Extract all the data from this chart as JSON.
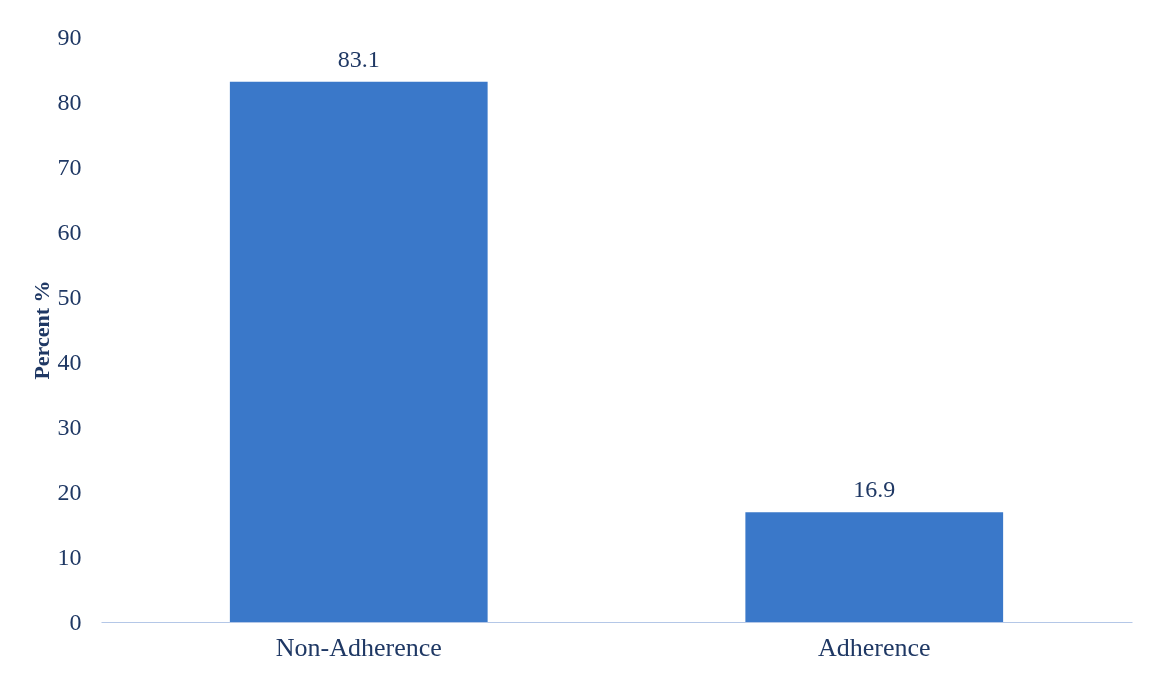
{
  "chart_data": {
    "type": "bar",
    "ylabel": "Percent %",
    "categories": [
      "Non-Adherence",
      "Adherence"
    ],
    "values": [
      83.1,
      16.9
    ],
    "color": "#3a78c9",
    "ylim": [
      0,
      90
    ],
    "yticks": [
      0,
      10,
      20,
      30,
      40,
      50,
      60,
      70,
      80,
      90
    ],
    "grid": false,
    "data_labels": true
  }
}
